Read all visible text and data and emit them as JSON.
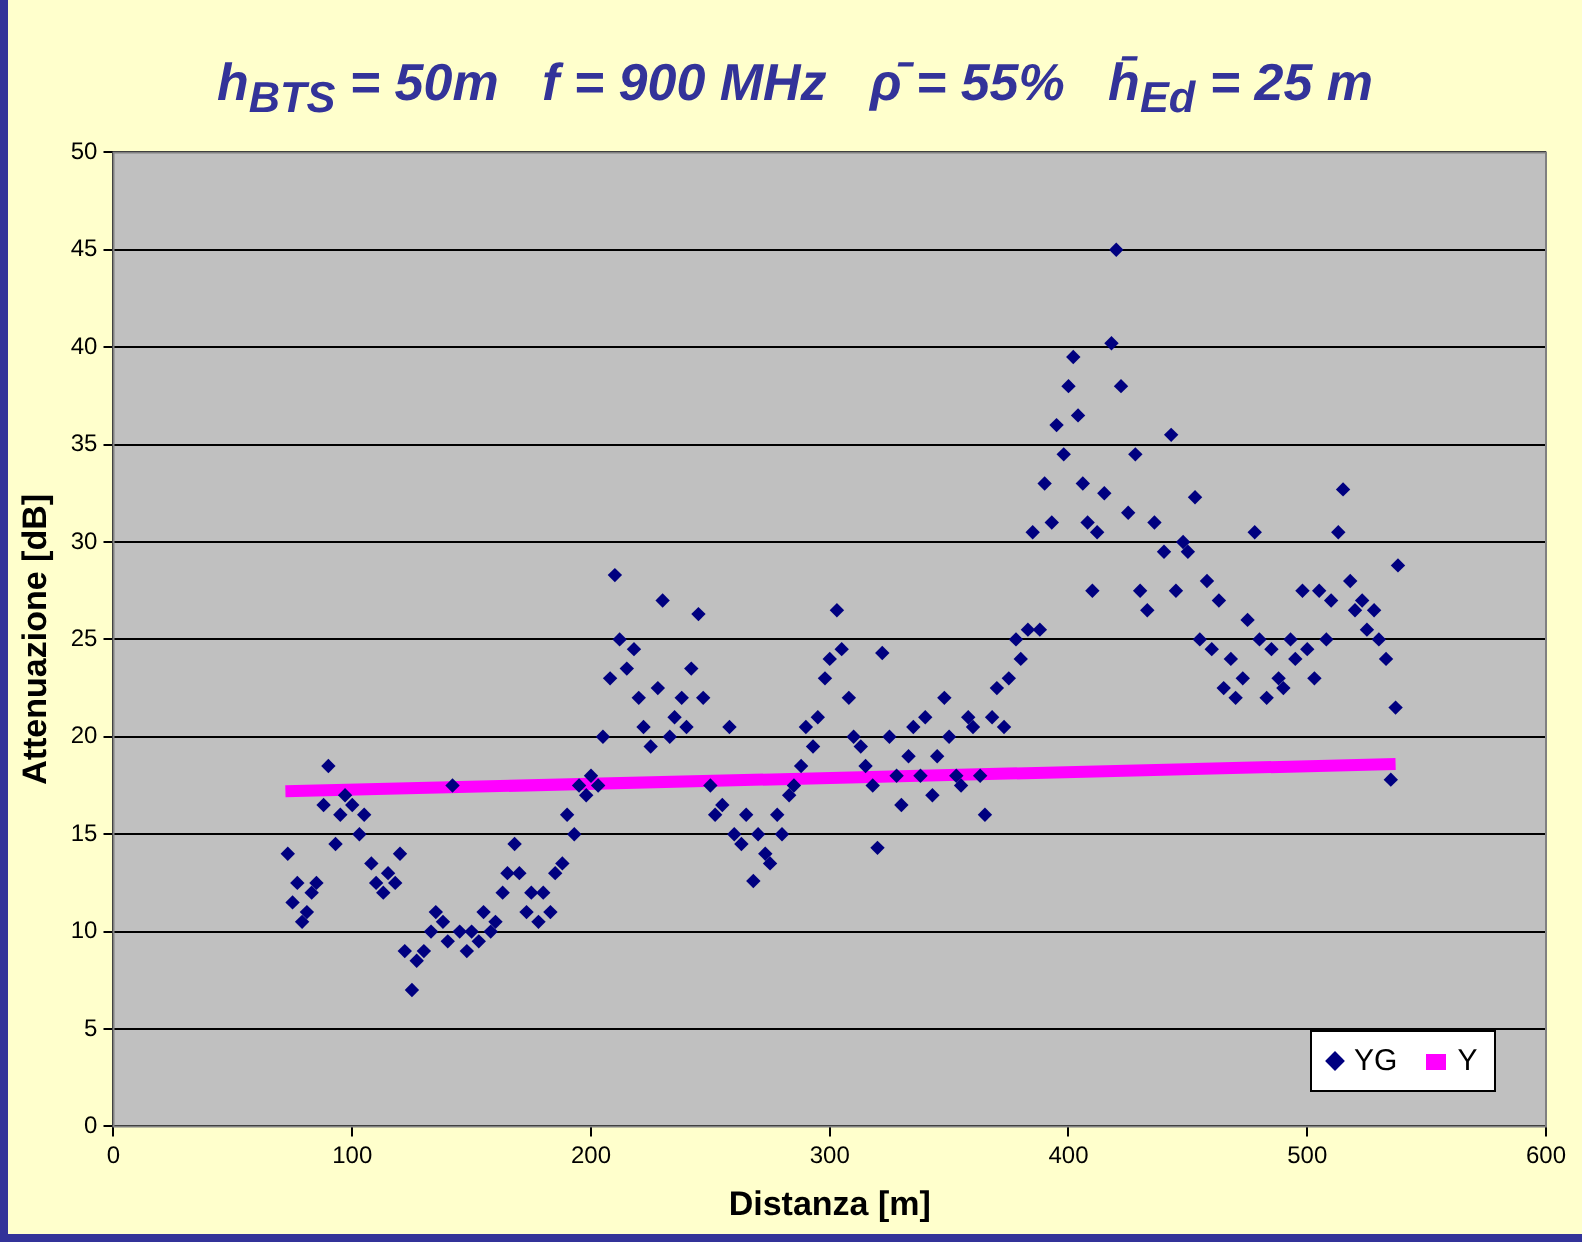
{
  "chart_data": {
    "type": "scatter",
    "title": "h$_{BTS}$ = 50m   f = 900 MHz   ρ̄ = 55%   h̄$_{Ed}$ = 25 m",
    "xlabel": "Distanza [m]",
    "ylabel": "Attenuazione [dB]",
    "xlim": [
      0,
      600
    ],
    "xticks": [
      0,
      100,
      200,
      300,
      400,
      500,
      600
    ],
    "ylim": [
      0,
      50
    ],
    "yticks": [
      0,
      5,
      10,
      15,
      20,
      25,
      30,
      35,
      40,
      45,
      50
    ],
    "grid": "y",
    "legend": "bottom right",
    "series": [
      {
        "name": "YG",
        "marker": "diamond",
        "color": "#000080",
        "x": [
          73,
          75,
          77,
          79,
          81,
          83,
          85,
          88,
          90,
          93,
          95,
          97,
          100,
          103,
          105,
          108,
          110,
          113,
          115,
          118,
          120,
          122,
          125,
          127,
          130,
          133,
          135,
          138,
          140,
          142,
          145,
          148,
          150,
          153,
          155,
          158,
          160,
          163,
          165,
          168,
          170,
          173,
          175,
          178,
          180,
          183,
          185,
          188,
          190,
          193,
          195,
          198,
          200,
          203,
          205,
          208,
          210,
          212,
          215,
          218,
          220,
          222,
          225,
          228,
          230,
          233,
          235,
          238,
          240,
          242,
          245,
          247,
          250,
          252,
          255,
          258,
          260,
          263,
          265,
          268,
          270,
          273,
          275,
          278,
          280,
          283,
          285,
          288,
          290,
          293,
          295,
          298,
          300,
          303,
          305,
          308,
          310,
          313,
          315,
          318,
          320,
          322,
          325,
          328,
          330,
          333,
          335,
          338,
          340,
          343,
          345,
          348,
          350,
          353,
          355,
          358,
          360,
          363,
          365,
          368,
          370,
          373,
          375,
          378,
          380,
          383,
          385,
          388,
          390,
          393,
          395,
          398,
          400,
          402,
          404,
          406,
          408,
          410,
          412,
          415,
          418,
          420,
          422,
          425,
          428,
          430,
          433,
          436,
          440,
          443,
          445,
          448,
          450,
          453,
          455,
          458,
          460,
          463,
          465,
          468,
          470,
          473,
          475,
          478,
          480,
          483,
          485,
          488,
          490,
          493,
          495,
          498,
          500,
          503,
          505,
          508,
          510,
          513,
          515,
          518,
          520,
          523,
          525,
          528,
          530,
          533,
          535,
          537,
          538
        ],
        "values": [
          14,
          11.5,
          12.5,
          10.5,
          11,
          12,
          12.5,
          16.5,
          18.5,
          14.5,
          16,
          17,
          16.5,
          15,
          16,
          13.5,
          12.5,
          12,
          13,
          12.5,
          14,
          9,
          7,
          8.5,
          9,
          10,
          11,
          10.5,
          9.5,
          17.5,
          10,
          9,
          10,
          9.5,
          11,
          10,
          10.5,
          12,
          13,
          14.5,
          13,
          11,
          12,
          10.5,
          12,
          11,
          13,
          13.5,
          16,
          15,
          17.5,
          17,
          18,
          17.5,
          20,
          23,
          28.3,
          25,
          23.5,
          24.5,
          22,
          20.5,
          19.5,
          22.5,
          27,
          20,
          21,
          22,
          20.5,
          23.5,
          26.3,
          22,
          17.5,
          16,
          16.5,
          20.5,
          15,
          14.5,
          16,
          12.6,
          15,
          14,
          13.5,
          16,
          15,
          17,
          17.5,
          18.5,
          20.5,
          19.5,
          21,
          23,
          24,
          26.5,
          24.5,
          22,
          20,
          19.5,
          18.5,
          17.5,
          14.3,
          24.3,
          20,
          18,
          16.5,
          19,
          20.5,
          18,
          21,
          17,
          19,
          22,
          20,
          18,
          17.5,
          21,
          20.5,
          18,
          16,
          21,
          22.5,
          20.5,
          23,
          25,
          24,
          25.5,
          30.5,
          25.5,
          33,
          31,
          36,
          34.5,
          38,
          39.5,
          36.5,
          33,
          31,
          27.5,
          30.5,
          32.5,
          40.2,
          45,
          38,
          31.5,
          34.5,
          27.5,
          26.5,
          31,
          29.5,
          35.5,
          27.5,
          30,
          29.5,
          32.3,
          25,
          28,
          24.5,
          27,
          22.5,
          24,
          22,
          23,
          26,
          30.5,
          25,
          22,
          24.5,
          23,
          22.5,
          25,
          24,
          27.5,
          24.5,
          23,
          27.5,
          25,
          27,
          30.5,
          32.7,
          28,
          26.5,
          27,
          25.5,
          26.5,
          25,
          24,
          17.8,
          21.5,
          28.8
        ]
      },
      {
        "name": "Y",
        "type": "line",
        "marker": "none",
        "color": "#ff00ff",
        "x": [
          72,
          537
        ],
        "values": [
          17.2,
          18.6
        ]
      }
    ]
  }
}
